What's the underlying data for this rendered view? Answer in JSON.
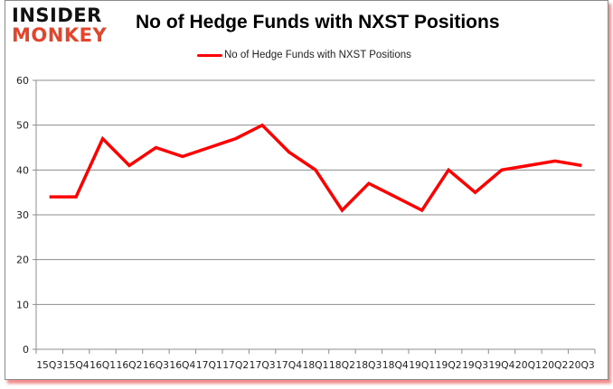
{
  "logo": {
    "line1": "INSIDER",
    "line2": "MONKEY"
  },
  "chart_data": {
    "type": "line",
    "title": "No of Hedge Funds with NXST Positions",
    "xlabel": "",
    "ylabel": "",
    "categories": [
      "15Q3",
      "15Q4",
      "16Q1",
      "16Q2",
      "16Q3",
      "16Q4",
      "17Q1",
      "17Q2",
      "17Q3",
      "17Q4",
      "18Q1",
      "18Q2",
      "18Q3",
      "18Q4",
      "19Q1",
      "19Q2",
      "19Q3",
      "19Q4",
      "20Q1",
      "20Q2",
      "20Q3"
    ],
    "series": [
      {
        "name": "No of Hedge Funds with NXST Positions",
        "color": "#ff0000",
        "values": [
          34,
          34,
          47,
          41,
          45,
          43,
          45,
          47,
          50,
          44,
          40,
          31,
          37,
          34,
          31,
          40,
          35,
          40,
          41,
          42,
          41
        ]
      }
    ],
    "ylim": [
      0,
      60
    ],
    "yticks": [
      0,
      10,
      20,
      30,
      40,
      50,
      60
    ],
    "grid": true,
    "legend_position": "top"
  }
}
